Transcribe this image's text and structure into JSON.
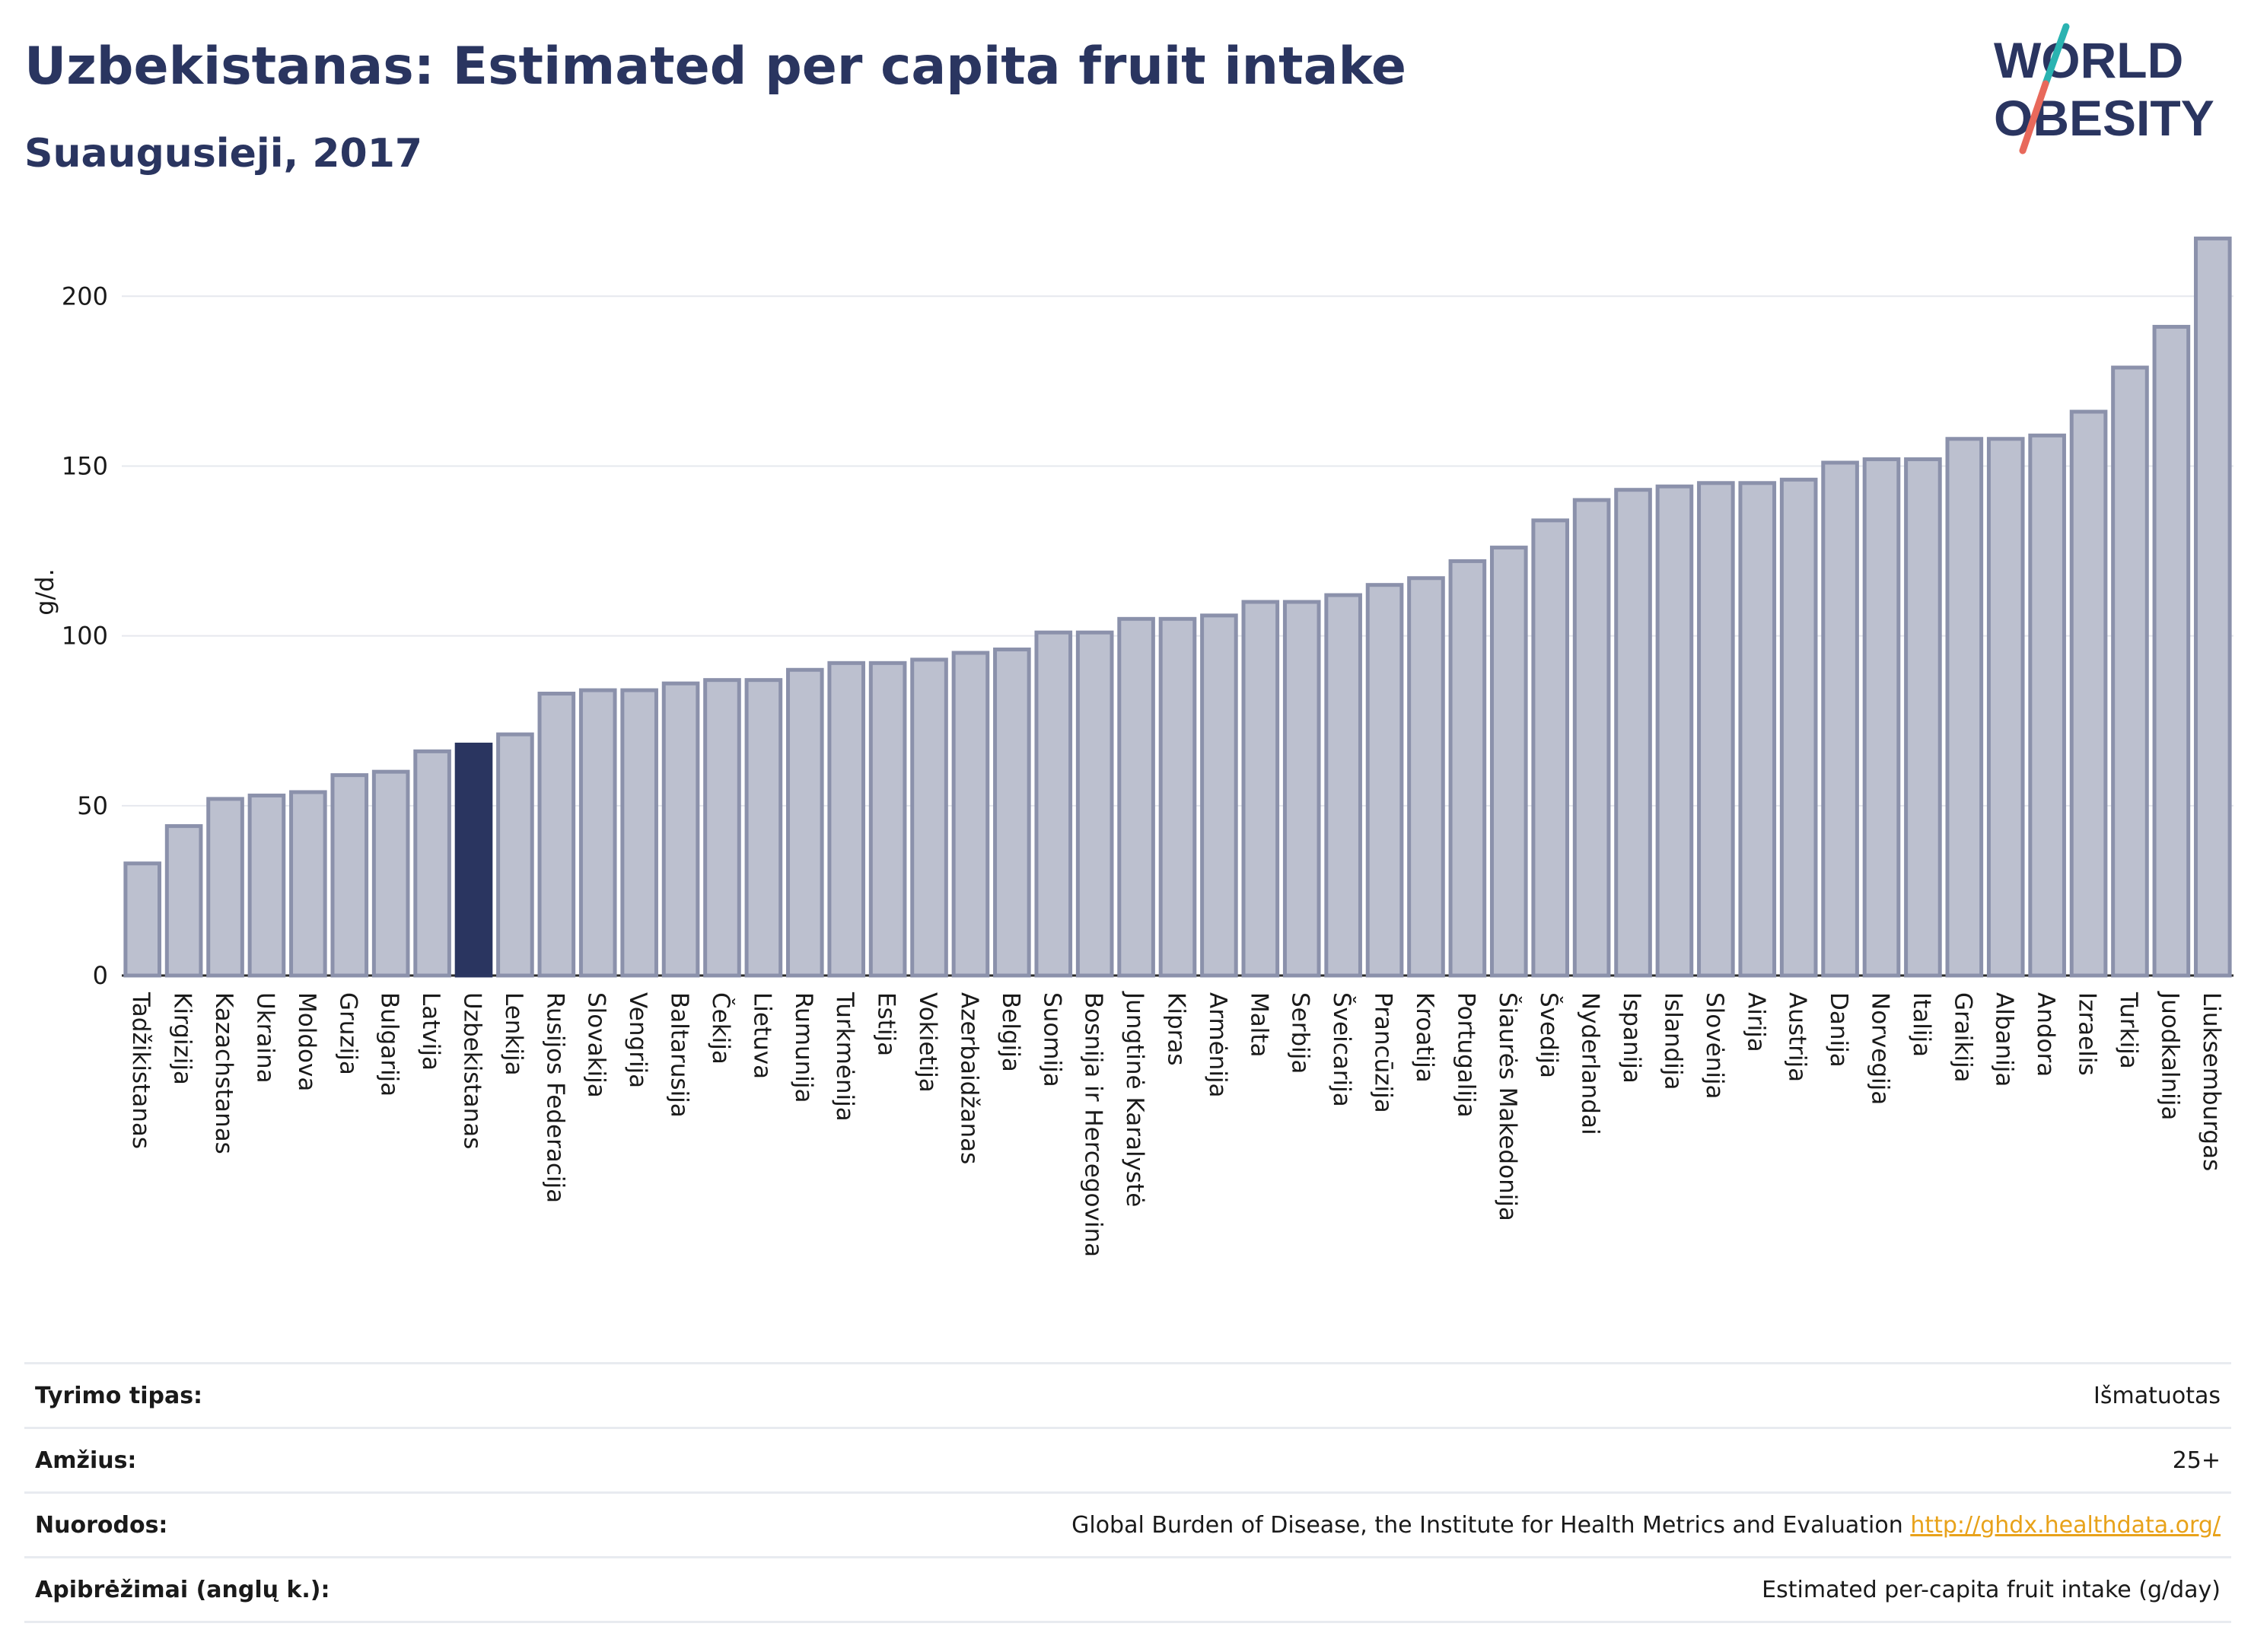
{
  "header": {
    "title": "Uzbekistanas: Estimated per capita fruit intake",
    "subtitle": "Suaugusieji, 2017"
  },
  "logo": {
    "line1": "WORLD",
    "line2": "OBESITY"
  },
  "colors": {
    "bar_fill": "#bcc0cf",
    "bar_stroke": "#8b91ab",
    "highlight_fill": "#2a3560",
    "grid": "#e6e8ee",
    "logo_accent_teal": "#2ab3b1",
    "logo_accent_red": "#e8695b",
    "link": "#e8a21a"
  },
  "chart_data": {
    "type": "bar",
    "ylabel": "g/d.",
    "ylim": [
      0,
      220
    ],
    "yticks": [
      0,
      50,
      100,
      150,
      200
    ],
    "grid": true,
    "highlight": "Uzbekistanas",
    "categories": [
      "Tadžikistanas",
      "Kirgizija",
      "Kazachstanas",
      "Ukraina",
      "Moldova",
      "Gruzija",
      "Bulgarija",
      "Latvija",
      "Uzbekistanas",
      "Lenkija",
      "Rusijos Federacija",
      "Slovakija",
      "Vengrija",
      "Baltarusija",
      "Čekija",
      "Lietuva",
      "Rumunija",
      "Turkmėnija",
      "Estija",
      "Vokietija",
      "Azerbaidžanas",
      "Belgija",
      "Suomija",
      "Bosnija ir Hercegovina",
      "Jungtinė Karalystė",
      "Kipras",
      "Armėnija",
      "Malta",
      "Serbija",
      "Šveicarija",
      "Prancūzija",
      "Kroatija",
      "Portugalija",
      "Šiaurės Makedonija",
      "Švedija",
      "Nyderlandai",
      "Ispanija",
      "Islandija",
      "Slovėnija",
      "Airija",
      "Austrija",
      "Danija",
      "Norvegija",
      "Italija",
      "Graikija",
      "Albanija",
      "Andora",
      "Izraelis",
      "Turkija",
      "Juodkalnija",
      "Liuksemburgas"
    ],
    "values": [
      33,
      44,
      52,
      53,
      54,
      59,
      60,
      66,
      68,
      71,
      83,
      84,
      84,
      86,
      87,
      87,
      90,
      92,
      92,
      93,
      95,
      96,
      101,
      101,
      105,
      105,
      106,
      110,
      110,
      112,
      115,
      117,
      122,
      126,
      134,
      140,
      143,
      144,
      145,
      145,
      146,
      151,
      152,
      152,
      158,
      158,
      159,
      166,
      179,
      191,
      217
    ]
  },
  "meta": [
    {
      "label": "Tyrimo tipas:",
      "value": "Išmatuotas"
    },
    {
      "label": "Amžius:",
      "value": "25+"
    },
    {
      "label": "Nuorodos:",
      "value": "Global Burden of Disease, the Institute for Health Metrics and Evaluation",
      "link": "http://ghdx.healthdata.org/"
    },
    {
      "label": "Apibrėžimai (anglų k.):",
      "value": "Estimated per-capita fruit intake (g/day)"
    }
  ]
}
